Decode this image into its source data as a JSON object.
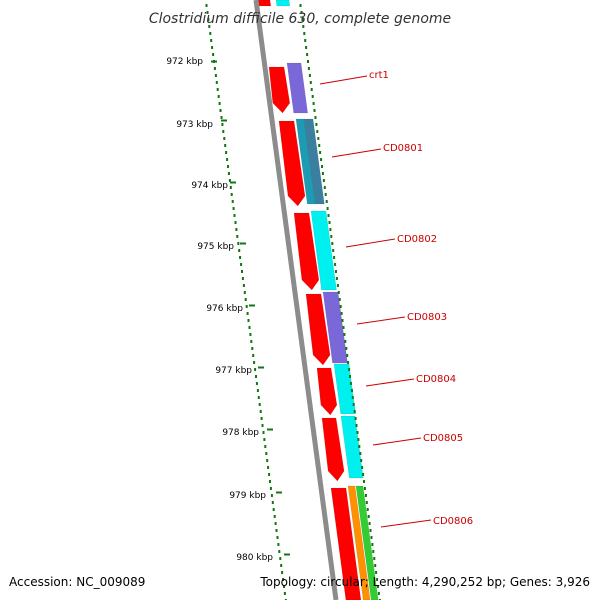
{
  "title": "Clostridium difficile 630, complete genome",
  "footer": {
    "accession": "Accession: NC_009089",
    "summary": "Topology: circular; Length: 4,290,252 bp; Genes: 3,926"
  },
  "colors": {
    "background": "#ffffff",
    "backbone": "#8c8c8c",
    "tick": "#117711",
    "gene_label": "#cc0000",
    "forward_gene": "#ff0000",
    "cyan_feature": "#00f0f0",
    "teal_feature": "#1c9bb2",
    "slate_feature": "#3a7ea0",
    "purple_feature": "#7b68d8",
    "orange_feature": "#ff9000",
    "green_feature": "#33cc33"
  },
  "scale_labels": [
    "972 kbp",
    "973 kbp",
    "974 kbp",
    "975 kbp",
    "976 kbp",
    "977 kbp",
    "978 kbp",
    "979 kbp",
    "980 kbp"
  ],
  "genes": [
    "crt1",
    "CD0801",
    "CD0802",
    "CD0803",
    "CD0804",
    "CD0805",
    "CD0806"
  ]
}
